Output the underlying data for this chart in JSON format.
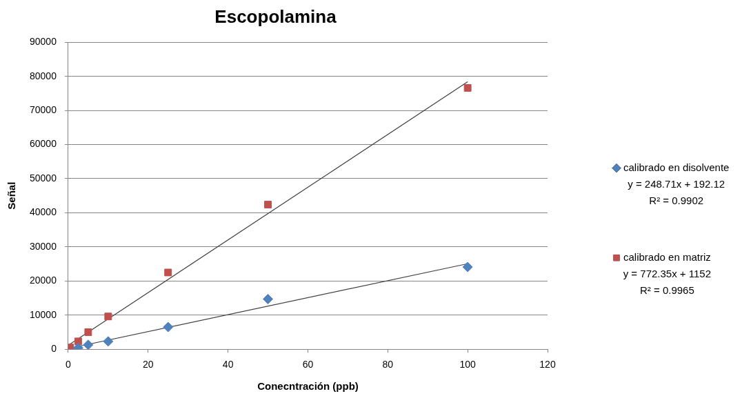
{
  "chart_data": {
    "type": "scatter",
    "title": "Escopolamina",
    "xlabel": "Conecntración (ppb)",
    "ylabel": "Señal",
    "xlim": [
      0,
      120
    ],
    "xticks": [
      0,
      20,
      40,
      60,
      80,
      100,
      120
    ],
    "ylim": [
      0,
      90000
    ],
    "yticks": [
      0,
      10000,
      20000,
      30000,
      40000,
      50000,
      60000,
      70000,
      80000,
      90000
    ],
    "grid": "y",
    "legend": "right",
    "series": [
      {
        "name": "calibrado en disolvente",
        "color": "#4f81bd",
        "marker": "diamond",
        "x": [
          2.5,
          5,
          10,
          25,
          50,
          100
        ],
        "values": [
          400,
          1300,
          2300,
          6500,
          14700,
          24100
        ]
      },
      {
        "name": "calibrado en matriz",
        "color": "#c0504d",
        "marker": "square",
        "x": [
          0.5,
          2.5,
          5,
          10,
          25,
          50,
          100
        ],
        "values": [
          500,
          2300,
          5000,
          9600,
          22500,
          42400,
          76600
        ]
      },
      {
        "type": "line",
        "color": "#404040",
        "marker": "none",
        "x": [
          0,
          100
        ],
        "values": [
          192.12,
          25063.12
        ]
      },
      {
        "type": "line",
        "color": "#404040",
        "marker": "none",
        "x": [
          0,
          100
        ],
        "values": [
          1152,
          78387
        ]
      }
    ],
    "annotations": [
      "y = 248.71x + 192.12",
      "R² = 0.9902",
      "y = 772.35x + 1152",
      "R² = 0.9965"
    ]
  }
}
